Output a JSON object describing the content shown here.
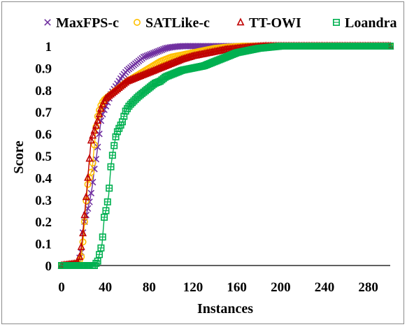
{
  "chart_data": {
    "type": "line",
    "title": "",
    "xlabel": "Instances",
    "ylabel": "Score",
    "xlim": [
      0,
      300
    ],
    "ylim": [
      0,
      1
    ],
    "xticks": [
      0,
      40,
      80,
      120,
      160,
      200,
      240,
      280
    ],
    "yticks": [
      0,
      0.1,
      0.2,
      0.3,
      0.4,
      0.5,
      0.6,
      0.7,
      0.8,
      0.9,
      1
    ],
    "ytick_labels": [
      "0",
      "0.1",
      "0.2",
      "0.3",
      "0.4",
      "0.5",
      "0.6",
      "0.7",
      "0.8",
      "0.9",
      "1"
    ],
    "grid": false,
    "legend_position": "top",
    "series": [
      {
        "name": "MaxFPS-c",
        "color": "#7030a0",
        "marker": "asterisk",
        "points": [
          [
            0,
            0
          ],
          [
            15,
            0.01
          ],
          [
            18,
            0.06
          ],
          [
            20,
            0.18
          ],
          [
            22,
            0.22
          ],
          [
            24,
            0.26
          ],
          [
            26,
            0.3
          ],
          [
            28,
            0.36
          ],
          [
            30,
            0.44
          ],
          [
            32,
            0.5
          ],
          [
            34,
            0.58
          ],
          [
            36,
            0.66
          ],
          [
            38,
            0.7
          ],
          [
            40,
            0.72
          ],
          [
            45,
            0.78
          ],
          [
            50,
            0.82
          ],
          [
            55,
            0.86
          ],
          [
            60,
            0.89
          ],
          [
            65,
            0.91
          ],
          [
            70,
            0.93
          ],
          [
            75,
            0.95
          ],
          [
            80,
            0.96
          ],
          [
            85,
            0.97
          ],
          [
            90,
            0.98
          ],
          [
            95,
            0.99
          ],
          [
            100,
            0.995
          ],
          [
            110,
            1
          ],
          [
            300,
            1
          ]
        ]
      },
      {
        "name": "SATLike-c",
        "color": "#ffc000",
        "marker": "circle",
        "points": [
          [
            0,
            0
          ],
          [
            15,
            0.01
          ],
          [
            18,
            0.04
          ],
          [
            20,
            0.13
          ],
          [
            22,
            0.27
          ],
          [
            24,
            0.37
          ],
          [
            26,
            0.41
          ],
          [
            28,
            0.44
          ],
          [
            30,
            0.55
          ],
          [
            32,
            0.66
          ],
          [
            34,
            0.7
          ],
          [
            36,
            0.73
          ],
          [
            38,
            0.75
          ],
          [
            40,
            0.76
          ],
          [
            45,
            0.78
          ],
          [
            50,
            0.8
          ],
          [
            55,
            0.82
          ],
          [
            60,
            0.84
          ],
          [
            70,
            0.87
          ],
          [
            80,
            0.9
          ],
          [
            90,
            0.93
          ],
          [
            100,
            0.95
          ],
          [
            110,
            0.96
          ],
          [
            120,
            0.97
          ],
          [
            130,
            0.98
          ],
          [
            140,
            0.99
          ],
          [
            150,
            0.995
          ],
          [
            165,
            1
          ],
          [
            300,
            1
          ]
        ]
      },
      {
        "name": "TT-OWI",
        "color": "#c00000",
        "marker": "triangle",
        "points": [
          [
            0,
            0
          ],
          [
            15,
            0.01
          ],
          [
            17,
            0.05
          ],
          [
            19,
            0.12
          ],
          [
            21,
            0.23
          ],
          [
            23,
            0.34
          ],
          [
            25,
            0.46
          ],
          [
            27,
            0.57
          ],
          [
            29,
            0.6
          ],
          [
            31,
            0.63
          ],
          [
            33,
            0.66
          ],
          [
            35,
            0.7
          ],
          [
            37,
            0.73
          ],
          [
            40,
            0.76
          ],
          [
            45,
            0.78
          ],
          [
            50,
            0.8
          ],
          [
            55,
            0.82
          ],
          [
            60,
            0.84
          ],
          [
            70,
            0.86
          ],
          [
            80,
            0.88
          ],
          [
            90,
            0.9
          ],
          [
            100,
            0.92
          ],
          [
            110,
            0.94
          ],
          [
            120,
            0.955
          ],
          [
            130,
            0.965
          ],
          [
            140,
            0.975
          ],
          [
            150,
            0.985
          ],
          [
            160,
            0.99
          ],
          [
            170,
            0.995
          ],
          [
            185,
            1
          ],
          [
            300,
            1
          ]
        ]
      },
      {
        "name": "Loandra",
        "color": "#00b050",
        "marker": "square",
        "points": [
          [
            0,
            0
          ],
          [
            30,
            0.0
          ],
          [
            33,
            0.02
          ],
          [
            35,
            0.06
          ],
          [
            37,
            0.1
          ],
          [
            39,
            0.22
          ],
          [
            41,
            0.26
          ],
          [
            43,
            0.32
          ],
          [
            45,
            0.45
          ],
          [
            47,
            0.52
          ],
          [
            50,
            0.6
          ],
          [
            53,
            0.63
          ],
          [
            56,
            0.66
          ],
          [
            58,
            0.7
          ],
          [
            62,
            0.73
          ],
          [
            66,
            0.75
          ],
          [
            70,
            0.77
          ],
          [
            75,
            0.79
          ],
          [
            80,
            0.81
          ],
          [
            85,
            0.83
          ],
          [
            90,
            0.84
          ],
          [
            95,
            0.86
          ],
          [
            100,
            0.87
          ],
          [
            110,
            0.89
          ],
          [
            120,
            0.9
          ],
          [
            130,
            0.91
          ],
          [
            140,
            0.93
          ],
          [
            150,
            0.95
          ],
          [
            160,
            0.97
          ],
          [
            170,
            0.98
          ],
          [
            180,
            0.99
          ],
          [
            190,
            0.995
          ],
          [
            200,
            1
          ],
          [
            300,
            1
          ]
        ]
      }
    ]
  }
}
